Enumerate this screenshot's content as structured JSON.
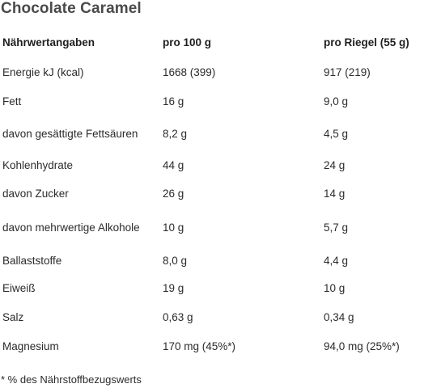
{
  "title": "Chocolate Caramel",
  "table": {
    "headers": [
      "Nährwertangaben",
      "pro 100 g",
      "pro Riegel (55 g)"
    ],
    "rows": [
      [
        "Energie kJ (kcal)",
        "1668 (399)",
        "917 (219)"
      ],
      [
        "Fett",
        "16 g",
        "9,0 g"
      ],
      [
        "davon gesättigte Fettsäuren",
        "8,2 g",
        "4,5 g"
      ],
      [
        "Kohlenhydrate",
        "44 g",
        "24 g"
      ],
      [
        "davon Zucker",
        "26 g",
        "14 g"
      ],
      [
        "davon mehrwertige Alkohole",
        "10 g",
        "5,7 g"
      ],
      [
        "Ballaststoffe",
        "8,0 g",
        "4,4 g"
      ],
      [
        "Eiweiß",
        "19 g",
        "10 g"
      ],
      [
        "Salz",
        "0,63 g",
        "0,34 g"
      ],
      [
        "Magnesium",
        "170 mg (45%*)",
        "94,0 mg (25%*)"
      ]
    ]
  },
  "footnote": "* % des Nährstoffbezugswerts"
}
